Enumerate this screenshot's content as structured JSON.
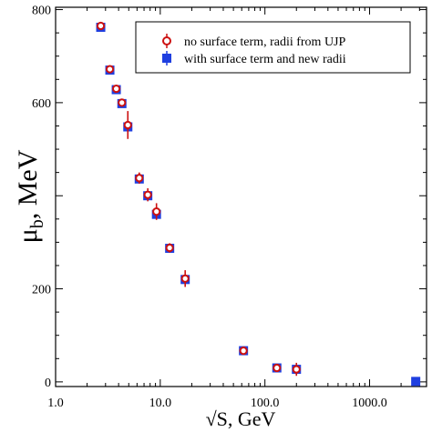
{
  "chart_data": {
    "type": "scatter",
    "x_scale": "log",
    "xlabel": "√S, GeV",
    "ylabel_main": "μ",
    "ylabel_sub": "b",
    "ylabel_tail": ", MeV",
    "xlim": [
      1.0,
      3500
    ],
    "ylim": [
      -10,
      805
    ],
    "x_ticks": [
      1.0,
      10.0,
      100.0,
      1000.0
    ],
    "x_tick_labels": [
      "1.0",
      "10.0",
      "100.0",
      "1000.0"
    ],
    "y_ticks": [
      0,
      200,
      400,
      600,
      800
    ],
    "y_tick_labels": [
      "0",
      "200",
      "",
      "600",
      "800"
    ],
    "grid": false,
    "legend_position": "top-right",
    "series": [
      {
        "name": "no surface term, radii from UJP",
        "marker": "open-circle",
        "color": "#cc1111",
        "points": [
          {
            "x": 2.7,
            "y": 765,
            "err": 5
          },
          {
            "x": 3.3,
            "y": 672,
            "err": 6
          },
          {
            "x": 3.8,
            "y": 630,
            "err": 6
          },
          {
            "x": 4.3,
            "y": 600,
            "err": 8
          },
          {
            "x": 4.9,
            "y": 552,
            "err": 30
          },
          {
            "x": 6.3,
            "y": 438,
            "err": 12
          },
          {
            "x": 7.6,
            "y": 402,
            "err": 14
          },
          {
            "x": 9.2,
            "y": 366,
            "err": 18
          },
          {
            "x": 12.3,
            "y": 288,
            "err": 10
          },
          {
            "x": 17.3,
            "y": 222,
            "err": 18
          },
          {
            "x": 62.4,
            "y": 67,
            "err": 8
          },
          {
            "x": 130,
            "y": 30,
            "err": 8
          },
          {
            "x": 200,
            "y": 27,
            "err": 14
          }
        ]
      },
      {
        "name": "with surface term and new radii",
        "marker": "filled-square",
        "color": "#1f3fe0",
        "points": [
          {
            "x": 2.7,
            "y": 762
          },
          {
            "x": 3.3,
            "y": 670
          },
          {
            "x": 3.8,
            "y": 628
          },
          {
            "x": 4.3,
            "y": 598
          },
          {
            "x": 4.9,
            "y": 548
          },
          {
            "x": 6.3,
            "y": 436
          },
          {
            "x": 7.6,
            "y": 400
          },
          {
            "x": 9.2,
            "y": 360
          },
          {
            "x": 12.3,
            "y": 287
          },
          {
            "x": 17.3,
            "y": 220
          },
          {
            "x": 62.4,
            "y": 67
          },
          {
            "x": 130,
            "y": 30
          },
          {
            "x": 200,
            "y": 27
          },
          {
            "x": 2760,
            "y": 1
          }
        ]
      }
    ]
  }
}
